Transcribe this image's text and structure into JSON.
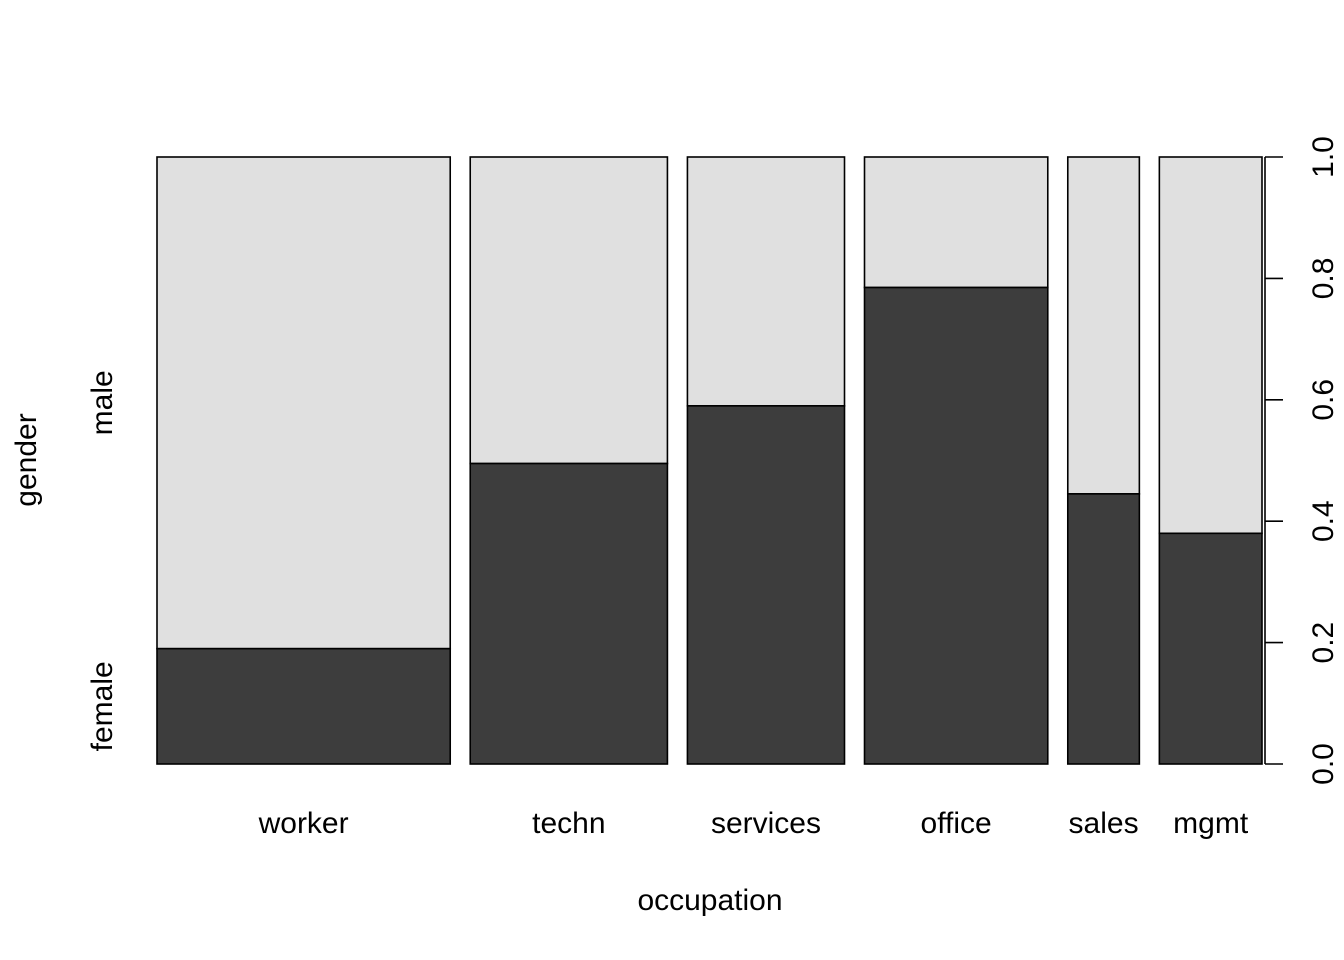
{
  "chart_data": {
    "type": "spineplot",
    "xlabel": "occupation",
    "ylabel": "gender",
    "categories": [
      "worker",
      "techn",
      "services",
      "office",
      "sales",
      "mgmt"
    ],
    "category_share": [
      0.3011,
      0.2025,
      0.1613,
      0.1882,
      0.0735,
      0.1054
    ],
    "series": [
      {
        "name": "female",
        "values": [
          0.19,
          0.495,
          0.59,
          0.785,
          0.445,
          0.38
        ]
      },
      {
        "name": "male",
        "values": [
          0.81,
          0.505,
          0.41,
          0.215,
          0.555,
          0.62
        ]
      }
    ],
    "ylim": [
      0,
      1
    ],
    "yticks": [
      "0.0",
      "0.2",
      "0.4",
      "0.6",
      "0.8",
      "1.0"
    ],
    "colors": {
      "female": "#3d3d3d",
      "male": "#e0e0e0",
      "outline": "#000000"
    }
  }
}
